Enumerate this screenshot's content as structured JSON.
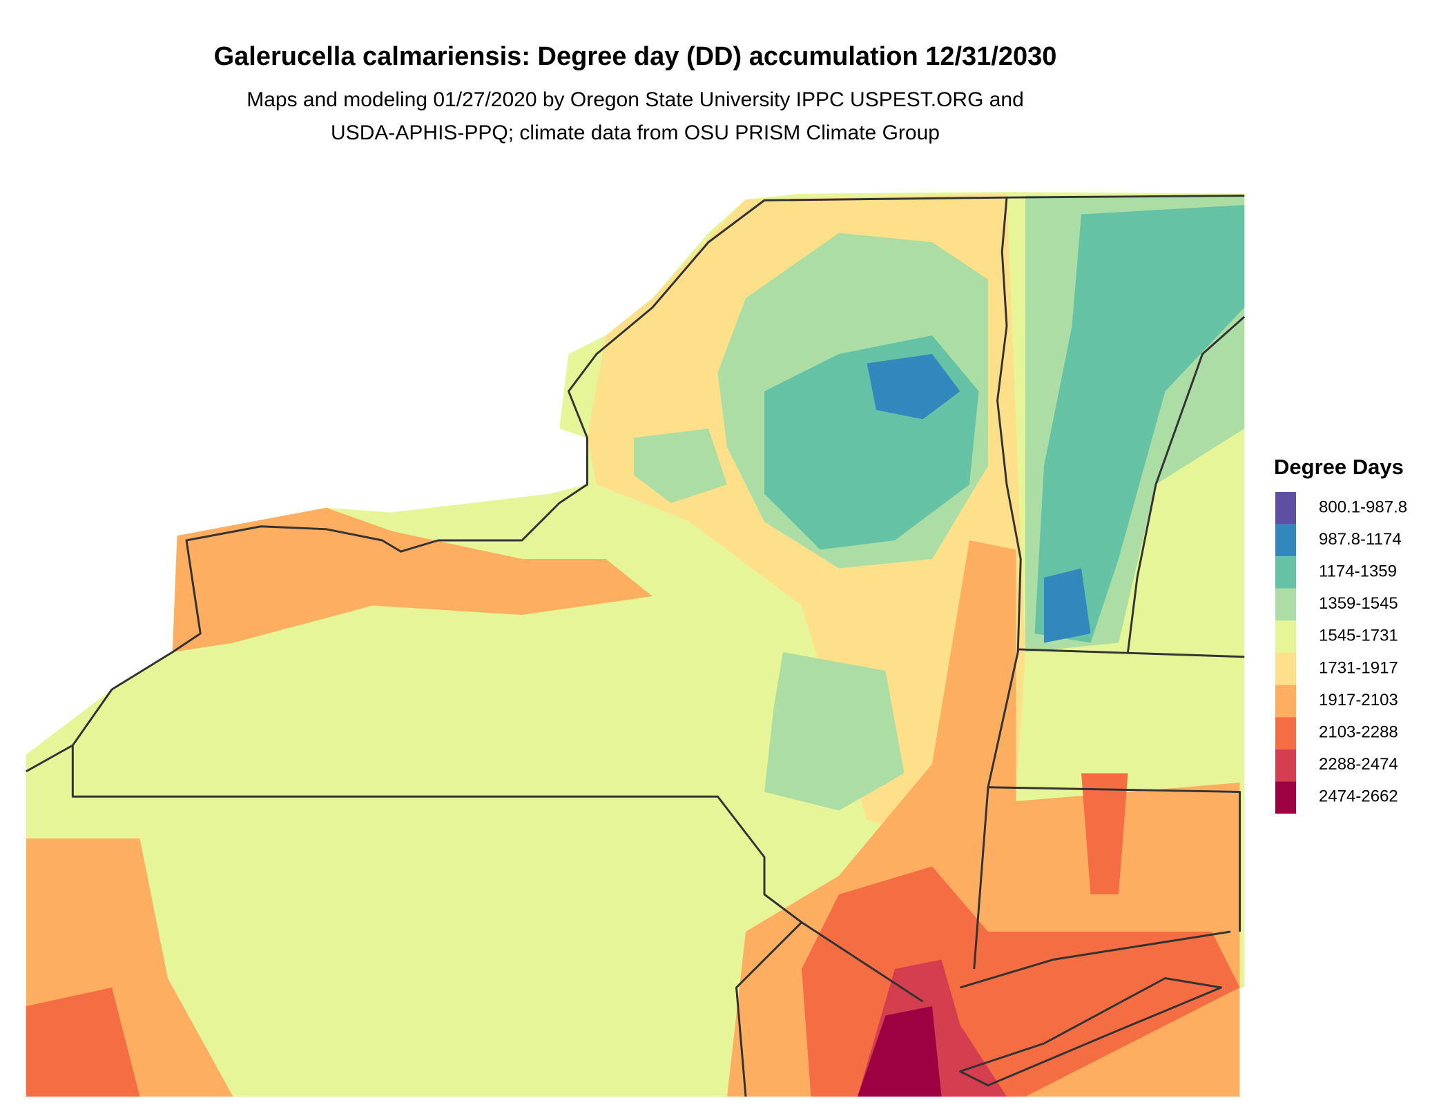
{
  "header": {
    "title": "Galerucella calmariensis: Degree day (DD) accumulation 12/31/2030",
    "subtitle": [
      "Maps and modeling 01/27/2020 by Oregon State University IPPC USPEST.ORG and",
      "USDA-APHIS-PPQ; climate data from OSU PRISM Climate Group"
    ]
  },
  "legend": {
    "title": "Degree Days",
    "items": [
      {
        "label": "800.1-987.8",
        "color": "#5e4fa2"
      },
      {
        "label": "987.8-1174",
        "color": "#3288bd"
      },
      {
        "label": "1174-1359",
        "color": "#66c2a5"
      },
      {
        "label": "1359-1545",
        "color": "#abdda4"
      },
      {
        "label": "1545-1731",
        "color": "#e6f598"
      },
      {
        "label": "1731-1917",
        "color": "#fee08b"
      },
      {
        "label": "1917-2103",
        "color": "#fdae61"
      },
      {
        "label": "2103-2288",
        "color": "#f46d43"
      },
      {
        "label": "2288-2474",
        "color": "#d53e4f"
      },
      {
        "label": "2474-2662",
        "color": "#9e0142"
      }
    ]
  }
}
